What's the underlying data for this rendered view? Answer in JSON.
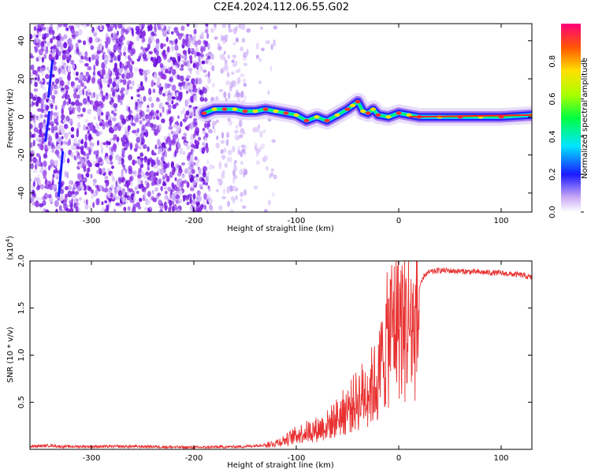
{
  "title": "C2E4.2024.112.06.55.G02",
  "chart_data": [
    {
      "type": "heatmap",
      "xlabel": "Height of straight line (km)",
      "ylabel": "Frequency (Hz)",
      "xlim": [
        -360,
        130
      ],
      "ylim": [
        -50,
        49
      ],
      "xticks": [
        "-300",
        "-200",
        "-100",
        "0",
        "100"
      ],
      "yticks": [
        "-40",
        "-20",
        "0",
        "20",
        "40"
      ],
      "ridge": {
        "x": [
          -190,
          -180,
          -170,
          -160,
          -150,
          -140,
          -130,
          -120,
          -110,
          -100,
          -90,
          -80,
          -70,
          -60,
          -50,
          -45,
          -40,
          -35,
          -30,
          -25,
          -20,
          -10,
          0,
          10,
          20,
          40,
          60,
          80,
          100,
          130
        ],
        "y": [
          2,
          4,
          4,
          4,
          3,
          3,
          4,
          3,
          2,
          1,
          -2,
          0,
          -2,
          1,
          4,
          6,
          8,
          3,
          2,
          4,
          1,
          0,
          2,
          1,
          0,
          0,
          0,
          0,
          0,
          1
        ]
      },
      "colorbar": {
        "label": "Normalized spectral amplitude",
        "ticks": [
          "0.0",
          "0.2",
          "0.4",
          "0.6",
          "0.8"
        ],
        "range": [
          0,
          1
        ]
      }
    },
    {
      "type": "line",
      "xlabel": "Height of straight line (km)",
      "ylabel": "SNR (10 * v/v)",
      "scale_note": "(x10",
      "scale_exp": "4",
      "scale_close": ")",
      "xlim": [
        -360,
        130
      ],
      "ylim": [
        0,
        2.0
      ],
      "xticks": [
        "-300",
        "-200",
        "-100",
        "0",
        "100"
      ],
      "yticks": [
        "0.5",
        "1.0",
        "1.5",
        "2.0"
      ],
      "color": "#e83030",
      "series": [
        {
          "x": [
            -360,
            -340,
            -330,
            -300,
            -250,
            -200,
            -150,
            -130,
            -120,
            -110,
            -100,
            -90,
            -80,
            -70,
            -60,
            -50,
            -40,
            -30,
            -20,
            -15,
            -10,
            -5,
            0,
            5,
            10,
            15,
            20,
            25,
            30,
            40,
            60,
            80,
            100,
            120,
            130
          ],
          "y": [
            0.03,
            0.04,
            0.03,
            0.03,
            0.03,
            0.02,
            0.03,
            0.05,
            0.08,
            0.12,
            0.18,
            0.22,
            0.25,
            0.3,
            0.4,
            0.5,
            0.62,
            0.75,
            0.85,
            1.2,
            1.4,
            1.6,
            1.7,
            1.5,
            1.6,
            1.45,
            1.7,
            1.85,
            1.88,
            1.9,
            1.89,
            1.88,
            1.87,
            1.85,
            1.82
          ]
        }
      ]
    }
  ],
  "colors": {
    "line": "#e83030",
    "noise": "#7a1fe8",
    "ridge_core": "#ff2020"
  }
}
